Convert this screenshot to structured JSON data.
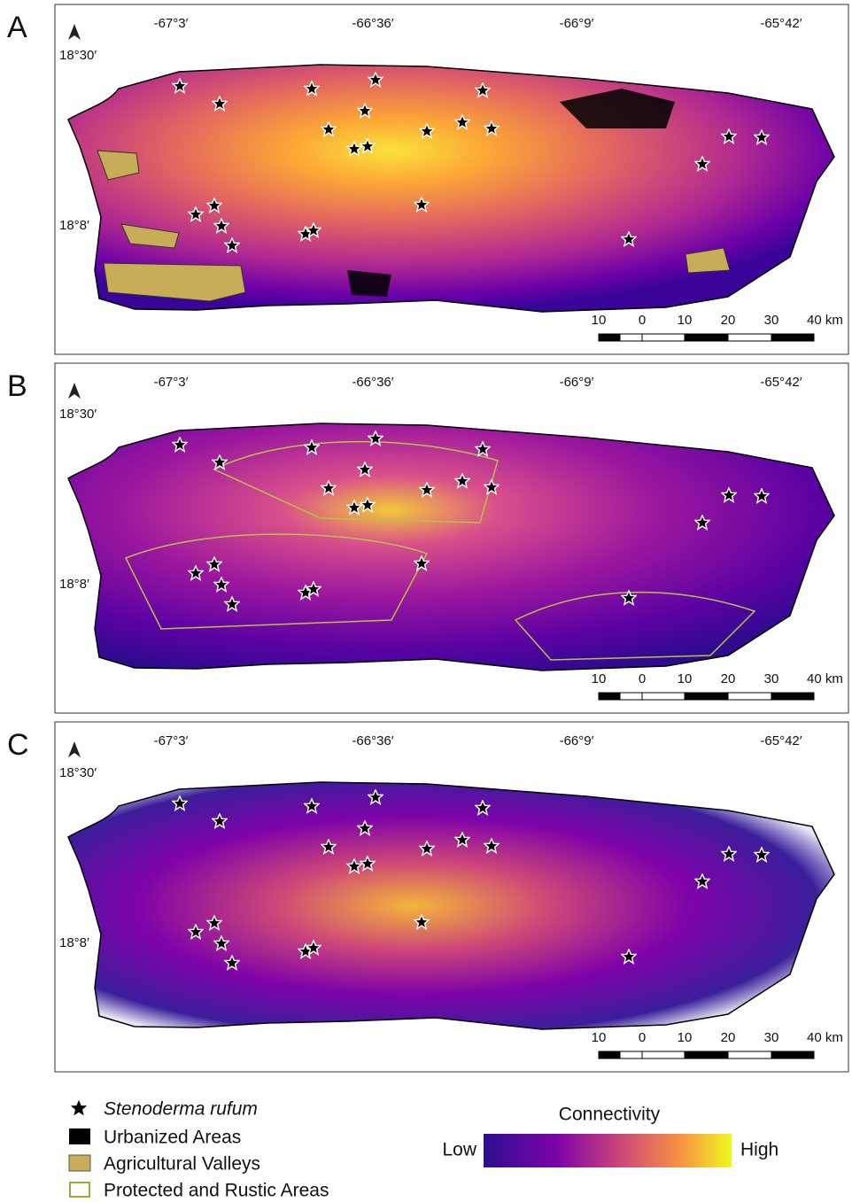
{
  "panels": [
    {
      "label": "A",
      "lon_labels": [
        "-67°3′",
        "-66°36′",
        "-66°9′",
        "-65°42′"
      ],
      "lat_labels": [
        "18°30′",
        "18°8′"
      ],
      "scale_labels": [
        "10",
        "0",
        "10",
        "20",
        "30",
        "40 km"
      ]
    },
    {
      "label": "B",
      "lon_labels": [
        "-67°3′",
        "-66°36′",
        "-66°9′",
        "-65°42′"
      ],
      "lat_labels": [
        "18°30′",
        "18°8′"
      ],
      "scale_labels": [
        "10",
        "0",
        "10",
        "20",
        "30",
        "40 km"
      ]
    },
    {
      "label": "C",
      "lon_labels": [
        "-67°3′",
        "-66°36′",
        "-66°9′",
        "-65°42′"
      ],
      "lat_labels": [
        "18°30′",
        "18°8′"
      ],
      "scale_labels": [
        "10",
        "0",
        "10",
        "20",
        "30",
        "40 km"
      ]
    }
  ],
  "legend": {
    "species": "Stenoderma rufum",
    "urban": "Urbanized Areas",
    "agricultural": "Agricultural Valleys",
    "protected": "Protected and Rustic Areas"
  },
  "colorbar": {
    "title": "Connectivity",
    "low": "Low",
    "high": "High"
  }
}
